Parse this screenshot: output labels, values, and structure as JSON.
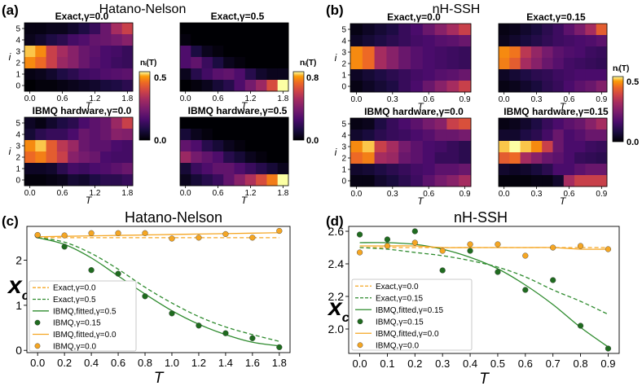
{
  "panel_labels": [
    "(a)",
    "(b)",
    "(c)",
    "(d)"
  ],
  "titles": {
    "a": "Hatano-Nelson",
    "b": "nH-SSH",
    "c": "Hatano-Nelson",
    "d": "nH-SSH"
  },
  "axis_text": {
    "T": "T",
    "i": "i",
    "xc_main": "x",
    "xc_sub": "c"
  },
  "colorbars": [
    {
      "label": "nᵢ(T)",
      "max_label": "0.5",
      "min_label": "0.0"
    },
    {
      "label": "nᵢ(T)",
      "max_label": "0.8",
      "min_label": "0.0"
    },
    {
      "label": "nᵢ(T)",
      "max_label": "0.5",
      "min_label": "0.0"
    }
  ],
  "colors": {
    "orange": "#f5a623",
    "green": "#2e8b2e",
    "dark_green": "#1f6b1f"
  },
  "chart_data": [
    {
      "type": "heatmap",
      "panel": "a",
      "title": "Exact,γ=0.0",
      "xlabel": "T",
      "ylabel": "i",
      "x_ticks": [
        "0.0",
        "0.6",
        "1.2",
        "1.8"
      ],
      "y_ticks": [
        "5",
        "4",
        "3",
        "2",
        "1",
        "0"
      ],
      "values": [
        [
          0.02,
          0.02,
          0.03,
          0.03,
          0.05,
          0.08,
          0.12,
          0.2,
          0.3,
          0.35
        ],
        [
          0.03,
          0.05,
          0.08,
          0.1,
          0.14,
          0.16,
          0.19,
          0.2,
          0.22,
          0.25
        ],
        [
          0.48,
          0.45,
          0.35,
          0.3,
          0.25,
          0.2,
          0.18,
          0.15,
          0.14,
          0.12
        ],
        [
          0.45,
          0.42,
          0.35,
          0.28,
          0.25,
          0.2,
          0.17,
          0.15,
          0.13,
          0.12
        ],
        [
          0.02,
          0.03,
          0.05,
          0.08,
          0.1,
          0.13,
          0.14,
          0.16,
          0.17,
          0.18
        ],
        [
          0.0,
          0.01,
          0.01,
          0.02,
          0.03,
          0.04,
          0.05,
          0.07,
          0.08,
          0.1
        ]
      ],
      "vmax": 0.5
    },
    {
      "type": "heatmap",
      "panel": "a",
      "title": "Exact,γ=0.5",
      "xlabel": "T",
      "ylabel": "",
      "x_ticks": [
        "0.0",
        "0.6",
        "1.2",
        "1.8"
      ],
      "y_ticks": [],
      "values": [
        [
          0.0,
          0.0,
          0.0,
          0.0,
          0.0,
          0.0,
          0.0,
          0.0,
          0.0,
          0.0
        ],
        [
          0.02,
          0.0,
          0.0,
          0.0,
          0.0,
          0.0,
          0.0,
          0.0,
          0.0,
          0.0
        ],
        [
          0.25,
          0.12,
          0.05,
          0.02,
          0.0,
          0.0,
          0.0,
          0.0,
          0.0,
          0.0
        ],
        [
          0.25,
          0.3,
          0.2,
          0.12,
          0.05,
          0.02,
          0.0,
          0.0,
          0.0,
          0.0
        ],
        [
          0.05,
          0.15,
          0.22,
          0.28,
          0.3,
          0.25,
          0.15,
          0.08,
          0.05,
          0.05
        ],
        [
          0.0,
          0.02,
          0.05,
          0.1,
          0.15,
          0.25,
          0.35,
          0.45,
          0.6,
          0.8
        ]
      ],
      "vmax": 0.8
    },
    {
      "type": "heatmap",
      "panel": "a",
      "title": "IBMQ hardware,γ=0.0",
      "xlabel": "T",
      "ylabel": "i",
      "x_ticks": [
        "0.0",
        "0.6",
        "1.2",
        "1.8"
      ],
      "y_ticks": [
        "5",
        "4",
        "3",
        "2",
        "1",
        "0"
      ],
      "values": [
        [
          0.04,
          0.02,
          0.05,
          0.08,
          0.1,
          0.15,
          0.18,
          0.2,
          0.28,
          0.35
        ],
        [
          0.06,
          0.1,
          0.12,
          0.12,
          0.15,
          0.2,
          0.18,
          0.2,
          0.25,
          0.24
        ],
        [
          0.45,
          0.48,
          0.4,
          0.33,
          0.28,
          0.2,
          0.18,
          0.18,
          0.15,
          0.14
        ],
        [
          0.42,
          0.44,
          0.4,
          0.35,
          0.25,
          0.22,
          0.2,
          0.15,
          0.14,
          0.14
        ],
        [
          0.04,
          0.04,
          0.05,
          0.1,
          0.14,
          0.13,
          0.15,
          0.16,
          0.18,
          0.2
        ],
        [
          0.01,
          0.01,
          0.02,
          0.03,
          0.06,
          0.05,
          0.08,
          0.1,
          0.1,
          0.12
        ]
      ],
      "vmax": 0.5
    },
    {
      "type": "heatmap",
      "panel": "a",
      "title": "IBMQ hardware,γ=0.5",
      "xlabel": "T",
      "ylabel": "",
      "x_ticks": [
        "0.0",
        "0.6",
        "1.2",
        "1.8"
      ],
      "y_ticks": [],
      "values": [
        [
          0.0,
          0.0,
          0.0,
          0.0,
          0.0,
          0.0,
          0.0,
          0.0,
          0.0,
          0.0
        ],
        [
          0.1,
          0.05,
          0.02,
          0.0,
          0.0,
          0.0,
          0.0,
          0.0,
          0.0,
          0.0
        ],
        [
          0.3,
          0.25,
          0.15,
          0.1,
          0.05,
          0.02,
          0.0,
          0.0,
          0.0,
          0.0
        ],
        [
          0.45,
          0.35,
          0.3,
          0.25,
          0.15,
          0.1,
          0.05,
          0.02,
          0.0,
          0.0
        ],
        [
          0.1,
          0.2,
          0.25,
          0.3,
          0.3,
          0.25,
          0.2,
          0.15,
          0.1,
          0.05
        ],
        [
          0.05,
          0.1,
          0.15,
          0.2,
          0.3,
          0.4,
          0.5,
          0.6,
          0.7,
          0.8
        ]
      ],
      "vmax": 0.8
    },
    {
      "type": "heatmap",
      "panel": "b",
      "title": "Exact,γ=0.0",
      "xlabel": "T",
      "ylabel": "i",
      "x_ticks": [
        "0.0",
        "0.3",
        "0.6",
        "0.9"
      ],
      "y_ticks": [
        "5",
        "4",
        "3",
        "2",
        "1",
        "0"
      ],
      "values": [
        [
          0.02,
          0.04,
          0.06,
          0.08,
          0.12,
          0.15,
          0.2,
          0.25,
          0.3,
          0.35
        ],
        [
          0.04,
          0.06,
          0.08,
          0.1,
          0.12,
          0.14,
          0.15,
          0.17,
          0.18,
          0.2
        ],
        [
          0.45,
          0.42,
          0.3,
          0.25,
          0.2,
          0.17,
          0.15,
          0.14,
          0.13,
          0.12
        ],
        [
          0.45,
          0.42,
          0.3,
          0.25,
          0.2,
          0.17,
          0.15,
          0.14,
          0.13,
          0.12
        ],
        [
          0.04,
          0.06,
          0.08,
          0.1,
          0.12,
          0.14,
          0.15,
          0.17,
          0.18,
          0.2
        ],
        [
          0.02,
          0.04,
          0.06,
          0.08,
          0.12,
          0.15,
          0.2,
          0.25,
          0.3,
          0.35
        ]
      ],
      "vmax": 0.5
    },
    {
      "type": "heatmap",
      "panel": "b",
      "title": "Exact,γ=0.15",
      "xlabel": "T",
      "ylabel": "",
      "x_ticks": [
        "0.0",
        "0.3",
        "0.6",
        "0.9"
      ],
      "y_ticks": [],
      "values": [
        [
          0.02,
          0.03,
          0.05,
          0.07,
          0.1,
          0.13,
          0.18,
          0.23,
          0.3,
          0.4
        ],
        [
          0.03,
          0.05,
          0.07,
          0.09,
          0.11,
          0.13,
          0.14,
          0.15,
          0.16,
          0.18
        ],
        [
          0.45,
          0.43,
          0.33,
          0.27,
          0.22,
          0.18,
          0.16,
          0.15,
          0.13,
          0.12
        ],
        [
          0.44,
          0.4,
          0.3,
          0.25,
          0.2,
          0.17,
          0.14,
          0.13,
          0.12,
          0.11
        ],
        [
          0.04,
          0.06,
          0.08,
          0.1,
          0.11,
          0.13,
          0.14,
          0.15,
          0.15,
          0.15
        ],
        [
          0.02,
          0.03,
          0.05,
          0.07,
          0.1,
          0.12,
          0.15,
          0.18,
          0.2,
          0.24
        ]
      ],
      "vmax": 0.5
    },
    {
      "type": "heatmap",
      "panel": "b",
      "title": "IBMQ hardware,γ=0.0",
      "xlabel": "T",
      "ylabel": "i",
      "x_ticks": [
        "0.0",
        "0.3",
        "0.6",
        "0.9"
      ],
      "y_ticks": [
        "5",
        "4",
        "3",
        "2",
        "1",
        "0"
      ],
      "values": [
        [
          0.02,
          0.03,
          0.08,
          0.12,
          0.15,
          0.18,
          0.22,
          0.25,
          0.35,
          0.38
        ],
        [
          0.05,
          0.07,
          0.1,
          0.12,
          0.13,
          0.15,
          0.17,
          0.2,
          0.2,
          0.22
        ],
        [
          0.45,
          0.48,
          0.35,
          0.3,
          0.22,
          0.18,
          0.15,
          0.14,
          0.12,
          0.1
        ],
        [
          0.42,
          0.44,
          0.3,
          0.28,
          0.2,
          0.18,
          0.15,
          0.12,
          0.12,
          0.1
        ],
        [
          0.05,
          0.06,
          0.08,
          0.1,
          0.12,
          0.14,
          0.15,
          0.18,
          0.18,
          0.2
        ],
        [
          0.02,
          0.02,
          0.05,
          0.07,
          0.1,
          0.13,
          0.18,
          0.22,
          0.25,
          0.3
        ]
      ],
      "vmax": 0.5
    },
    {
      "type": "heatmap",
      "panel": "b",
      "title": "IBMQ hardware,γ=0.15",
      "xlabel": "T",
      "ylabel": "",
      "x_ticks": [
        "0.0",
        "0.3",
        "0.6",
        "0.9"
      ],
      "y_ticks": [],
      "values": [
        [
          0.02,
          0.03,
          0.05,
          0.08,
          0.12,
          0.15,
          0.18,
          0.2,
          0.25,
          0.3
        ],
        [
          0.05,
          0.05,
          0.08,
          0.1,
          0.14,
          0.2,
          0.15,
          0.17,
          0.2,
          0.2
        ],
        [
          0.48,
          0.5,
          0.48,
          0.45,
          0.35,
          0.2,
          0.15,
          0.15,
          0.13,
          0.12
        ],
        [
          0.4,
          0.42,
          0.3,
          0.25,
          0.2,
          0.18,
          0.15,
          0.12,
          0.11,
          0.1
        ],
        [
          0.05,
          0.04,
          0.05,
          0.07,
          0.1,
          0.15,
          0.15,
          0.18,
          0.2,
          0.2
        ],
        [
          0.01,
          0.01,
          0.01,
          0.02,
          0.02,
          0.05,
          0.3,
          0.35,
          0.35,
          0.35
        ]
      ],
      "vmax": 0.5
    },
    {
      "type": "line",
      "panel": "c",
      "title": "Hatano-Nelson",
      "xlabel": "T",
      "ylabel": "xc",
      "xlim": [
        -0.08,
        1.88
      ],
      "ylim": [
        -0.05,
        2.75
      ],
      "x_ticks": [
        0.0,
        0.2,
        0.4,
        0.6,
        0.8,
        1.0,
        1.2,
        1.4,
        1.6,
        1.8
      ],
      "x_tick_labels": [
        "0.0",
        "0.2",
        "0.4",
        "0.6",
        "0.8",
        "1.0",
        "1.2",
        "1.4",
        "1.6",
        "1.8"
      ],
      "y_ticks": [
        0,
        1,
        2
      ],
      "y_tick_labels": [
        "0",
        "1",
        "2"
      ],
      "series": [
        {
          "name": "Exact,γ=0.0",
          "style": "dashed",
          "color": "#f5a623",
          "x": [
            0.0,
            0.2,
            0.4,
            0.6,
            0.8,
            1.0,
            1.2,
            1.4,
            1.6,
            1.8
          ],
          "y": [
            2.5,
            2.5,
            2.5,
            2.5,
            2.5,
            2.5,
            2.5,
            2.5,
            2.5,
            2.5
          ]
        },
        {
          "name": "Exact,γ=0.5",
          "style": "dashed",
          "color": "#2e8b2e",
          "x": [
            0.0,
            0.2,
            0.4,
            0.6,
            0.8,
            1.0,
            1.2,
            1.4,
            1.6,
            1.8
          ],
          "y": [
            2.5,
            2.4,
            2.15,
            1.8,
            1.4,
            1.05,
            0.75,
            0.52,
            0.35,
            0.2
          ]
        },
        {
          "name": "IBMQ,fitted,γ=0.5",
          "style": "solid",
          "color": "#2e8b2e",
          "x": [
            0.0,
            0.2,
            0.4,
            0.6,
            0.8,
            1.0,
            1.2,
            1.4,
            1.6,
            1.8
          ],
          "y": [
            2.5,
            2.35,
            2.05,
            1.65,
            1.25,
            0.88,
            0.58,
            0.35,
            0.18,
            0.1
          ]
        },
        {
          "name": "IBMQ,γ=0.15",
          "style": "points",
          "color": "#1f6b1f",
          "x": [
            0.0,
            0.2,
            0.4,
            0.6,
            0.8,
            1.0,
            1.2,
            1.4,
            1.6,
            1.8
          ],
          "y": [
            2.55,
            2.3,
            1.78,
            1.7,
            1.2,
            0.82,
            0.55,
            0.38,
            0.27,
            0.07
          ]
        },
        {
          "name": "IBMQ,fitted,γ=0.0",
          "style": "solid",
          "color": "#f5a623",
          "x": [
            0.0,
            0.2,
            0.4,
            0.6,
            0.8,
            1.0,
            1.2,
            1.4,
            1.6,
            1.8
          ],
          "y": [
            2.52,
            2.53,
            2.54,
            2.55,
            2.56,
            2.57,
            2.58,
            2.59,
            2.6,
            2.61
          ]
        },
        {
          "name": "IBMQ,γ=0.0",
          "style": "points",
          "color": "#f5a623",
          "x": [
            0.0,
            0.2,
            0.4,
            0.6,
            0.8,
            1.0,
            1.2,
            1.4,
            1.6,
            1.8
          ],
          "y": [
            2.56,
            2.55,
            2.6,
            2.6,
            2.6,
            2.48,
            2.5,
            2.58,
            2.5,
            2.65
          ]
        }
      ],
      "legend_position": "lower-left"
    },
    {
      "type": "line",
      "panel": "d",
      "title": "nH-SSH",
      "xlabel": "T",
      "ylabel": "xc",
      "xlim": [
        -0.04,
        0.94
      ],
      "ylim": [
        1.85,
        2.63
      ],
      "x_ticks": [
        0.0,
        0.1,
        0.2,
        0.3,
        0.4,
        0.5,
        0.6,
        0.7,
        0.8,
        0.9
      ],
      "x_tick_labels": [
        "0.0",
        "0.1",
        "0.2",
        "0.3",
        "0.4",
        "0.5",
        "0.6",
        "0.7",
        "0.8",
        "0.9"
      ],
      "y_ticks": [
        2.0,
        2.2,
        2.4,
        2.6
      ],
      "y_tick_labels": [
        "2.0",
        "2.2",
        "2.4",
        "2.6"
      ],
      "series": [
        {
          "name": "Exact,γ=0.0",
          "style": "dashed",
          "color": "#f5a623",
          "x": [
            0.0,
            0.1,
            0.2,
            0.3,
            0.4,
            0.5,
            0.6,
            0.7,
            0.8,
            0.9
          ],
          "y": [
            2.5,
            2.5,
            2.5,
            2.5,
            2.5,
            2.5,
            2.5,
            2.5,
            2.5,
            2.5
          ]
        },
        {
          "name": "Exact,γ=0.15",
          "style": "dashed",
          "color": "#2e8b2e",
          "x": [
            0.0,
            0.1,
            0.2,
            0.3,
            0.4,
            0.5,
            0.6,
            0.7,
            0.8,
            0.9
          ],
          "y": [
            2.5,
            2.49,
            2.47,
            2.45,
            2.42,
            2.38,
            2.32,
            2.24,
            2.17,
            2.09
          ]
        },
        {
          "name": "IBMQ,fitted,γ=0.15",
          "style": "solid",
          "color": "#2e8b2e",
          "x": [
            0.0,
            0.1,
            0.2,
            0.3,
            0.4,
            0.5,
            0.6,
            0.7,
            0.8,
            0.9
          ],
          "y": [
            2.53,
            2.53,
            2.52,
            2.49,
            2.44,
            2.37,
            2.27,
            2.15,
            2.01,
            1.89
          ]
        },
        {
          "name": "IBMQ,γ=0.15",
          "style": "points",
          "color": "#1f6b1f",
          "x": [
            0.0,
            0.1,
            0.2,
            0.3,
            0.4,
            0.5,
            0.6,
            0.7,
            0.8,
            0.9
          ],
          "y": [
            2.58,
            2.55,
            2.6,
            2.36,
            2.48,
            2.35,
            2.24,
            2.3,
            2.02,
            1.88
          ]
        },
        {
          "name": "IBMQ,fitted,γ=0.0",
          "style": "solid",
          "color": "#f5a623",
          "x": [
            0.0,
            0.1,
            0.2,
            0.3,
            0.4,
            0.5,
            0.6,
            0.7,
            0.8,
            0.9
          ],
          "y": [
            2.51,
            2.51,
            2.51,
            2.5,
            2.5,
            2.5,
            2.5,
            2.5,
            2.49,
            2.49
          ]
        },
        {
          "name": "IBMQ,γ=0.0",
          "style": "points",
          "color": "#f5a623",
          "x": [
            0.0,
            0.1,
            0.2,
            0.3,
            0.4,
            0.5,
            0.6,
            0.7,
            0.8,
            0.9
          ],
          "y": [
            2.47,
            2.51,
            2.53,
            2.48,
            2.52,
            2.52,
            2.45,
            2.5,
            2.51,
            2.49
          ]
        }
      ],
      "legend_position": "lower-left"
    }
  ]
}
